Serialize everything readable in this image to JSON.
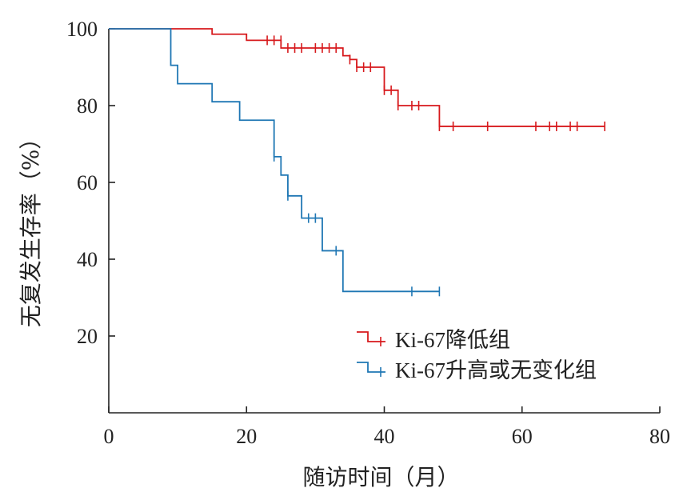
{
  "chart_data": {
    "type": "line",
    "subtype": "kaplan-meier-step",
    "title": "",
    "xlabel": "随访时间（月）",
    "ylabel": "无复发生存率（%）",
    "xlim": [
      0,
      80
    ],
    "ylim": [
      0,
      100
    ],
    "x_ticks": [
      0,
      20,
      40,
      60,
      80
    ],
    "y_ticks": [
      20,
      40,
      60,
      80,
      100
    ],
    "x_tick_labels": [
      "0",
      "20",
      "40",
      "60",
      "80"
    ],
    "y_tick_labels": [
      "20",
      "40",
      "60",
      "80",
      "100"
    ],
    "grid": false,
    "legend": "center-right",
    "series": [
      {
        "name": "Ki-67降低组",
        "color": "#d7191c",
        "steps": [
          [
            0,
            100
          ],
          [
            15,
            98.6
          ],
          [
            20,
            97
          ],
          [
            25,
            95
          ],
          [
            34,
            93
          ],
          [
            35,
            92
          ],
          [
            36,
            90
          ],
          [
            40,
            84
          ],
          [
            42,
            80
          ],
          [
            48,
            74.6
          ],
          [
            72,
            74.6
          ]
        ],
        "censored": [
          [
            23,
            97
          ],
          [
            24,
            97
          ],
          [
            25,
            97
          ],
          [
            26,
            95
          ],
          [
            27,
            95
          ],
          [
            28,
            95
          ],
          [
            30,
            95
          ],
          [
            31,
            95
          ],
          [
            32,
            95
          ],
          [
            33,
            95
          ],
          [
            35,
            92
          ],
          [
            36,
            90
          ],
          [
            37,
            90
          ],
          [
            38,
            90
          ],
          [
            40,
            84
          ],
          [
            41,
            84
          ],
          [
            42,
            80
          ],
          [
            44,
            80
          ],
          [
            45,
            80
          ],
          [
            48,
            74.6
          ],
          [
            50,
            74.6
          ],
          [
            55,
            74.6
          ],
          [
            62,
            74.6
          ],
          [
            64,
            74.6
          ],
          [
            65,
            74.6
          ],
          [
            67,
            74.6
          ],
          [
            68,
            74.6
          ],
          [
            72,
            74.6
          ]
        ]
      },
      {
        "name": "Ki-67升高或无变化组",
        "color": "#1f77b4",
        "steps": [
          [
            0,
            100
          ],
          [
            9,
            90.5
          ],
          [
            10,
            85.7
          ],
          [
            15,
            81
          ],
          [
            19,
            76.2
          ],
          [
            24,
            66.7
          ],
          [
            25,
            61.9
          ],
          [
            26,
            56.5
          ],
          [
            28,
            50.7
          ],
          [
            31,
            42.2
          ],
          [
            34,
            31.6
          ],
          [
            48,
            31.6
          ]
        ],
        "censored": [
          [
            24,
            66.7
          ],
          [
            26,
            56.5
          ],
          [
            29,
            50.7
          ],
          [
            30,
            50.7
          ],
          [
            33,
            42.2
          ],
          [
            44,
            31.6
          ],
          [
            48,
            31.6
          ]
        ]
      }
    ]
  }
}
